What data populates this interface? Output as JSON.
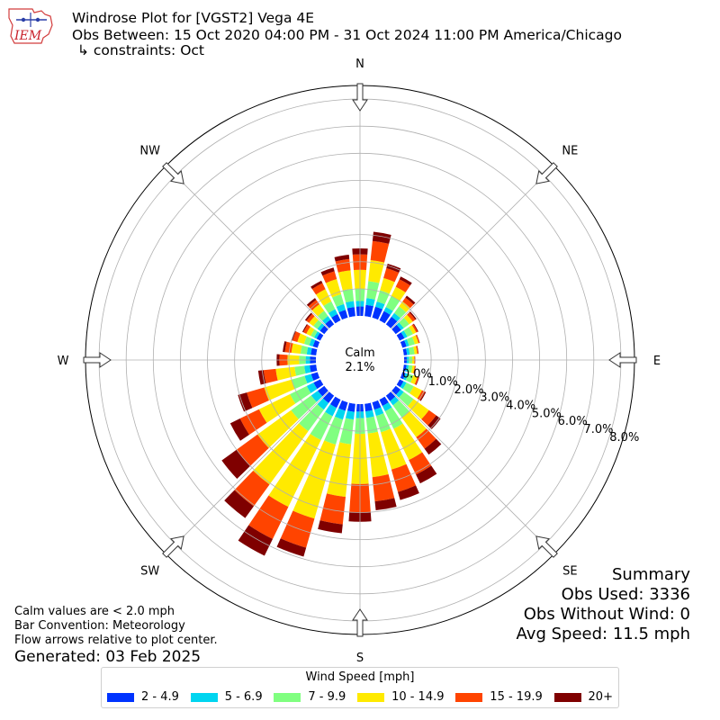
{
  "header": {
    "line1": "Windrose Plot for [VGST2] Vega 4E",
    "line2": "Obs Between: 15 Oct 2020 04:00 PM - 31 Oct 2024 11:00 PM America/Chicago",
    "line3": "↳ constraints: Oct",
    "logo_text": "IEM"
  },
  "summary": {
    "heading": "Summary",
    "obs_used": "Obs Used: 3336",
    "obs_without_wind": "Obs Without Wind: 0",
    "avg_speed": "Avg Speed: 11.5 mph"
  },
  "notes": {
    "calm_def": "Calm values are < 2.0 mph",
    "convention": "Bar Convention: Meteorology",
    "arrows": "Flow arrows relative to plot center.",
    "generated": "Generated: 03 Feb 2025"
  },
  "chart_data": {
    "type": "windrose",
    "calm_label": "Calm",
    "calm_value": "2.1%",
    "directions": [
      "N",
      "NE",
      "E",
      "SE",
      "S",
      "SW",
      "W",
      "NW"
    ],
    "radial_ticks": [
      "0.0%",
      "1.0%",
      "2.0%",
      "3.0%",
      "4.0%",
      "5.0%",
      "6.0%",
      "7.0%",
      "8.0%"
    ],
    "rmax": 8.5,
    "legend_title": "Wind Speed [mph]",
    "speed_bins": [
      {
        "label": "2 - 4.9",
        "color": "#0033ff"
      },
      {
        "label": "5 - 6.9",
        "color": "#00d5f0"
      },
      {
        "label": "7 - 9.9",
        "color": "#80ff80"
      },
      {
        "label": "10 - 14.9",
        "color": "#ffea00"
      },
      {
        "label": "15 - 19.9",
        "color": "#ff4400"
      },
      {
        "label": "20+",
        "color": "#7f0000"
      }
    ],
    "sector_width_deg": 10,
    "sectors": [
      {
        "dir": 0,
        "cumulative": [
          0.35,
          0.55,
          1.0,
          1.7,
          2.27,
          2.49
        ]
      },
      {
        "dir": 10,
        "cumulative": [
          0.42,
          0.67,
          1.3,
          2.08,
          2.79,
          3.13
        ]
      },
      {
        "dir": 20,
        "cumulative": [
          0.42,
          0.62,
          1.05,
          1.52,
          1.9,
          2.07
        ]
      },
      {
        "dir": 30,
        "cumulative": [
          0.38,
          0.55,
          1.0,
          1.38,
          1.69,
          1.8
        ]
      },
      {
        "dir": 40,
        "cumulative": [
          0.35,
          0.52,
          0.82,
          1.04,
          1.22,
          1.31
        ]
      },
      {
        "dir": 50,
        "cumulative": [
          0.25,
          0.37,
          0.62,
          0.78,
          0.9,
          0.95
        ]
      },
      {
        "dir": 60,
        "cumulative": [
          0.2,
          0.32,
          0.55,
          0.68,
          0.74,
          0.77
        ]
      },
      {
        "dir": 70,
        "cumulative": [
          0.16,
          0.26,
          0.48,
          0.62,
          0.66,
          0.67
        ]
      },
      {
        "dir": 80,
        "cumulative": [
          0.12,
          0.22,
          0.4,
          0.5,
          0.54,
          0.55
        ]
      },
      {
        "dir": 90,
        "cumulative": [
          0.1,
          0.18,
          0.3,
          0.38,
          0.4,
          0.41
        ]
      },
      {
        "dir": 100,
        "cumulative": [
          0.1,
          0.18,
          0.32,
          0.4,
          0.43,
          0.44
        ]
      },
      {
        "dir": 110,
        "cumulative": [
          0.12,
          0.22,
          0.42,
          0.58,
          0.63,
          0.65
        ]
      },
      {
        "dir": 120,
        "cumulative": [
          0.16,
          0.28,
          0.58,
          0.92,
          1.04,
          1.08
        ]
      },
      {
        "dir": 130,
        "cumulative": [
          0.22,
          0.37,
          0.82,
          1.52,
          1.85,
          2.05
        ]
      },
      {
        "dir": 140,
        "cumulative": [
          0.25,
          0.44,
          1.0,
          1.9,
          2.42,
          2.69
        ]
      },
      {
        "dir": 150,
        "cumulative": [
          0.26,
          0.48,
          1.2,
          2.48,
          3.08,
          3.44
        ]
      },
      {
        "dir": 160,
        "cumulative": [
          0.28,
          0.52,
          1.15,
          2.58,
          3.44,
          3.75
        ]
      },
      {
        "dir": 170,
        "cumulative": [
          0.28,
          0.52,
          1.1,
          2.72,
          3.62,
          3.95
        ]
      },
      {
        "dir": 180,
        "cumulative": [
          0.28,
          0.52,
          1.1,
          2.95,
          4.0,
          4.34
        ]
      },
      {
        "dir": 190,
        "cumulative": [
          0.3,
          0.58,
          1.5,
          3.45,
          4.47,
          4.8
        ]
      },
      {
        "dir": 200,
        "cumulative": [
          0.32,
          0.66,
          1.62,
          4.46,
          5.58,
          5.92
        ]
      },
      {
        "dir": 210,
        "cumulative": [
          0.34,
          0.68,
          1.66,
          4.4,
          5.72,
          6.41
        ]
      },
      {
        "dir": 220,
        "cumulative": [
          0.34,
          0.64,
          1.62,
          4.05,
          5.04,
          5.58
        ]
      },
      {
        "dir": 230,
        "cumulative": [
          0.3,
          0.6,
          1.52,
          3.05,
          4.0,
          4.68
        ]
      },
      {
        "dir": 240,
        "cumulative": [
          0.28,
          0.56,
          1.25,
          2.52,
          3.3,
          3.7
        ]
      },
      {
        "dir": 250,
        "cumulative": [
          0.25,
          0.5,
          1.0,
          2.05,
          2.72,
          3.06
        ]
      },
      {
        "dir": 260,
        "cumulative": [
          0.24,
          0.44,
          0.8,
          1.5,
          1.95,
          2.15
        ]
      },
      {
        "dir": 270,
        "cumulative": [
          0.22,
          0.38,
          0.62,
          1.05,
          1.35,
          1.45
        ]
      },
      {
        "dir": 280,
        "cumulative": [
          0.2,
          0.35,
          0.58,
          0.92,
          1.16,
          1.24
        ]
      },
      {
        "dir": 290,
        "cumulative": [
          0.18,
          0.32,
          0.52,
          0.78,
          0.96,
          1.01
        ]
      },
      {
        "dir": 300,
        "cumulative": [
          0.16,
          0.26,
          0.4,
          0.58,
          0.7,
          0.74
        ]
      },
      {
        "dir": 310,
        "cumulative": [
          0.2,
          0.32,
          0.5,
          0.7,
          0.82,
          0.88
        ]
      },
      {
        "dir": 320,
        "cumulative": [
          0.22,
          0.38,
          0.62,
          0.92,
          1.12,
          1.2
        ]
      },
      {
        "dir": 330,
        "cumulative": [
          0.26,
          0.46,
          0.78,
          1.28,
          1.53,
          1.63
        ]
      },
      {
        "dir": 340,
        "cumulative": [
          0.3,
          0.52,
          0.9,
          1.48,
          1.78,
          1.92
        ]
      },
      {
        "dir": 350,
        "cumulative": [
          0.34,
          0.56,
          1.02,
          1.7,
          2.12,
          2.28
        ]
      }
    ]
  }
}
